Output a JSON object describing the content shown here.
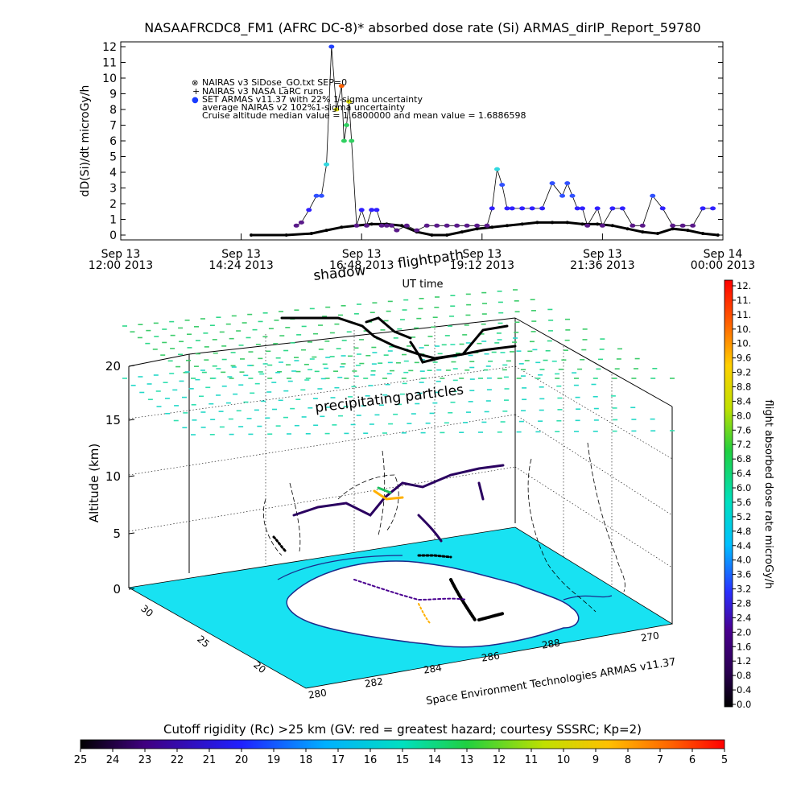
{
  "chart_data": [
    {
      "type": "scatter",
      "title": "NASAAFRCDC8_FM1 (AFRC DC-8)* absorbed dose rate (Si) ARMAS_dirIP_Report_59780",
      "ylabel": "dD(Si)/dt microGy/h",
      "xlabel": "UT time",
      "ylim": [
        0,
        12
      ],
      "y_ticks": [
        "0",
        "1",
        "2",
        "3",
        "4",
        "5",
        "6",
        "7",
        "8",
        "9",
        "10",
        "11",
        "12"
      ],
      "x_ticks": [
        {
          "line1": "Sep 13",
          "line2": "12:00 2013"
        },
        {
          "line1": "Sep 13",
          "line2": "14:24 2013"
        },
        {
          "line1": "Sep 13",
          "line2": "16:48 2013"
        },
        {
          "line1": "Sep 13",
          "line2": "19:12 2013"
        },
        {
          "line1": "Sep 13",
          "line2": "21:36 2013"
        },
        {
          "line1": "Sep 14",
          "line2": "00:00 2013"
        }
      ],
      "legend": [
        {
          "symbol": "⊗",
          "text": "NAIRAS v3 SiDose_GO.txt SEP=0"
        },
        {
          "symbol": "+",
          "text": "NAIRAS v3 NASA LaRC runs"
        },
        {
          "symbol": "●",
          "text": "SET ARMAS v11.37 with 22% 1-sigma uncertainty"
        },
        {
          "symbol": "",
          "text": "average NAIRAS v2 102%1-sigma uncertainty"
        },
        {
          "symbol": "",
          "text": "Cruise altitude median value = 1.6800000 and mean value = 1.6886598"
        }
      ],
      "series": [
        {
          "name": "SET ARMAS v11.37 with 22% 1-sigma uncertainty",
          "x_hours": [
            15.5,
            15.6,
            15.75,
            15.9,
            16.0,
            16.1,
            16.2,
            16.3,
            16.4,
            16.45,
            16.5,
            16.55,
            16.6,
            16.7,
            16.8,
            16.9,
            17.0,
            17.1,
            17.2,
            17.3,
            17.4,
            17.5,
            17.7,
            17.9,
            18.1,
            18.3,
            18.5,
            18.7,
            18.9,
            19.1,
            19.3,
            19.4,
            19.5,
            19.6,
            19.7,
            19.8,
            20.0,
            20.2,
            20.4,
            20.6,
            20.8,
            20.9,
            21.0,
            21.1,
            21.2,
            21.3,
            21.5,
            21.6,
            21.8,
            22.0,
            22.2,
            22.4,
            22.6,
            22.8,
            23.0,
            23.2,
            23.4,
            23.6,
            23.8
          ],
          "values": [
            0.6,
            0.8,
            1.6,
            2.5,
            2.5,
            4.5,
            12,
            8,
            9.5,
            6,
            7,
            8.5,
            6,
            0.6,
            1.6,
            0.6,
            1.6,
            1.6,
            0.6,
            0.6,
            0.6,
            0.3,
            0.6,
            0.3,
            0.6,
            0.6,
            0.6,
            0.6,
            0.6,
            0.6,
            0.6,
            1.7,
            4.2,
            3.2,
            1.7,
            1.7,
            1.7,
            1.7,
            1.7,
            3.3,
            2.5,
            3.3,
            2.5,
            1.7,
            1.7,
            0.6,
            1.7,
            0.6,
            1.7,
            1.7,
            0.6,
            0.6,
            2.5,
            1.7,
            0.6,
            0.6,
            0.6,
            1.7,
            1.7
          ]
        },
        {
          "name": "NAIRAS v3 NASA LaRC runs",
          "x_hours": [
            14.6,
            15.3,
            15.8,
            16.1,
            16.4,
            16.7,
            17.0,
            17.3,
            17.6,
            17.9,
            18.2,
            18.5,
            18.8,
            19.1,
            19.4,
            19.7,
            20.0,
            20.3,
            20.6,
            20.9,
            21.2,
            21.5,
            21.8,
            22.1,
            22.4,
            22.7,
            23.0,
            23.3,
            23.6,
            23.9
          ],
          "values": [
            0,
            0,
            0.1,
            0.3,
            0.5,
            0.6,
            0.7,
            0.7,
            0.6,
            0.2,
            0.0,
            0.0,
            0.2,
            0.4,
            0.5,
            0.6,
            0.7,
            0.8,
            0.8,
            0.8,
            0.7,
            0.7,
            0.6,
            0.4,
            0.2,
            0.1,
            0.4,
            0.3,
            0.1,
            0.0
          ]
        }
      ]
    },
    {
      "type": "scatter",
      "title": "",
      "zlabel": "Altitude (km)",
      "z_ticks": [
        "0",
        "5",
        "10",
        "15",
        "20"
      ],
      "lat_ticks": [
        "30",
        "25",
        "20"
      ],
      "lon_ticks": [
        "280",
        "282",
        "284",
        "286",
        "288",
        "270"
      ],
      "annotations": {
        "flightpath": "flightpath",
        "shadow": "shadow",
        "precipitating": "precipitating particles",
        "credit": "Space Environment Technologies ARMAS v11.37"
      }
    }
  ],
  "colorbar_right": {
    "label": "flight absorbed dose rate microGy/h",
    "ticks": [
      "12.",
      "11.",
      "11.",
      "10.",
      "10.",
      "9.6",
      "9.2",
      "8.8",
      "8.4",
      "8.0",
      "7.6",
      "7.2",
      "6.8",
      "6.4",
      "6.0",
      "5.6",
      "5.2",
      "4.8",
      "4.4",
      "4.0",
      "3.6",
      "3.2",
      "2.8",
      "2.4",
      "2.0",
      "1.6",
      "1.2",
      "0.8",
      "0.4",
      "0.0"
    ]
  },
  "colorbar_bottom": {
    "label": "Cutoff rigidity (Rc) >25 km (GV: red = greatest hazard; courtesy SSSRC; Kp=2)",
    "ticks": [
      "25",
      "24",
      "23",
      "22",
      "21",
      "20",
      "19",
      "18",
      "17",
      "16",
      "15",
      "14",
      "13",
      "12",
      "11",
      "10",
      "9",
      "8",
      "7",
      "6",
      "5"
    ]
  },
  "colors": {
    "ground": "#18e2f2",
    "particles": "#2fd88a",
    "track": "#000000"
  }
}
